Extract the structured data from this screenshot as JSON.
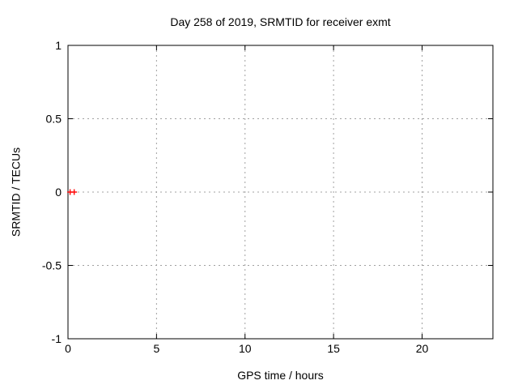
{
  "page": {
    "background": "#ffffff"
  },
  "chart_data": {
    "type": "scatter",
    "title": "Day 258 of 2019, SRMTID for receiver exmt",
    "xlabel": "GPS time / hours",
    "ylabel": "SRMTID / TECUs",
    "xlim": [
      0,
      24
    ],
    "ylim": [
      -1,
      1
    ],
    "xtick_values": [
      0,
      5,
      10,
      15,
      20
    ],
    "xtick_labels": [
      "0",
      "5",
      "10",
      "15",
      "20"
    ],
    "ytick_values": [
      -1,
      -0.5,
      0,
      0.5,
      1
    ],
    "ytick_labels": [
      "-1",
      "-0.5",
      "0",
      "0.5",
      "1"
    ],
    "grid": true,
    "legend_position": "none",
    "series": [
      {
        "name": "SRMTID",
        "marker": "plus",
        "color": "#ff0000",
        "points": [
          {
            "x": 0.12,
            "y": 0.0
          },
          {
            "x": 0.35,
            "y": 0.0
          }
        ]
      }
    ],
    "colors": {
      "frame": "#000000",
      "grid": "#a0a0a0",
      "background": "#ffffff"
    }
  }
}
